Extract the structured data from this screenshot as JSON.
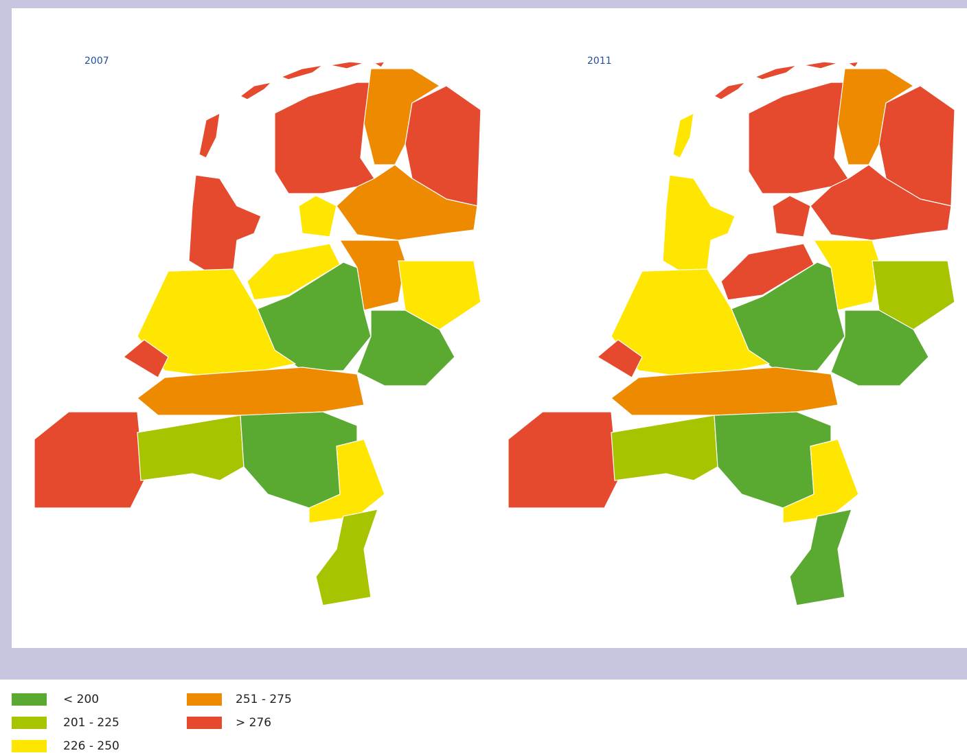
{
  "maps": [
    {
      "title": "2007"
    },
    {
      "title": "2011"
    }
  ],
  "legend": [
    {
      "label": "< 200",
      "color": "#5aaa32"
    },
    {
      "label": "201 - 225",
      "color": "#a8c400"
    },
    {
      "label": "226 - 250",
      "color": "#ffe600"
    },
    {
      "label": "251 - 275",
      "color": "#ee8a00"
    },
    {
      "label": "> 276",
      "color": "#e54a2e"
    }
  ]
}
